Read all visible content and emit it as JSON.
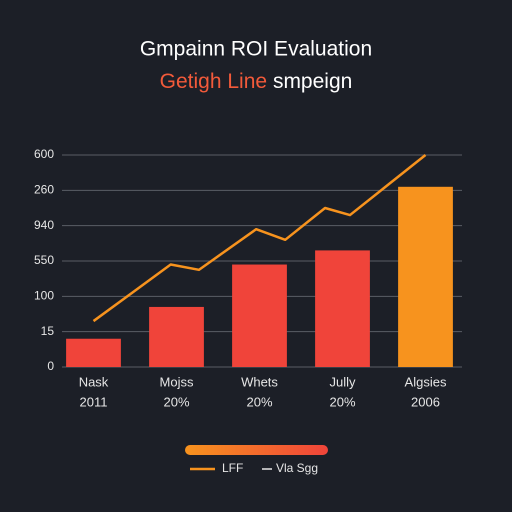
{
  "chart_data": {
    "type": "bar",
    "title": "Gmpainn ROI Evaluation",
    "subtitle": [
      "Getigh Line",
      "smpeign"
    ],
    "categories": [
      "Nask",
      "Mojss",
      "Whets",
      "Jully",
      "Algsies"
    ],
    "category_years": [
      "2011",
      "20%",
      "20%",
      "20%",
      "2006"
    ],
    "ylim": [
      0,
      6
    ],
    "yticks": [
      {
        "value": 0,
        "label": "0"
      },
      {
        "value": 1,
        "label": "15"
      },
      {
        "value": 2,
        "label": "100"
      },
      {
        "value": 3,
        "label": "550"
      },
      {
        "value": 4,
        "label": "940"
      },
      {
        "value": 5,
        "label": "260"
      },
      {
        "value": 6,
        "label": "600"
      }
    ],
    "grid": true,
    "series": [
      {
        "name": "Vla Sgg",
        "type": "bar",
        "colors": [
          "#f0443a",
          "#f0443a",
          "#f0443a",
          "#f0443a",
          "#f7931e"
        ],
        "values": [
          0.8,
          1.7,
          2.9,
          3.3,
          5.1
        ]
      },
      {
        "name": "LFF",
        "type": "line",
        "color": "#f7931e",
        "x": [
          0,
          0.93,
          1.27,
          1.96,
          2.31,
          2.79,
          3.09,
          4
        ],
        "values": [
          1.3,
          2.9,
          2.75,
          3.9,
          3.6,
          4.5,
          4.3,
          6.0
        ]
      }
    ]
  }
}
